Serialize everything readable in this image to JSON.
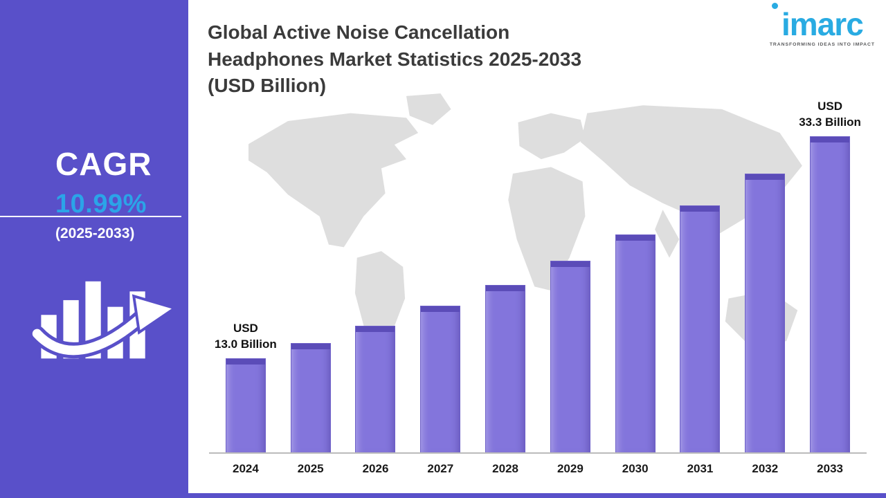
{
  "sidebar": {
    "cagr_label": "CAGR",
    "cagr_value": "10.99%",
    "cagr_period": "(2025-2033)",
    "bg_color": "#5950C9",
    "accent_color": "#2BA4E8",
    "icon": "growth-bars-with-up-arrow-icon"
  },
  "header": {
    "title": "Global Active Noise Cancellation\nHeadphones Market Statistics 2025-2033\n(USD Billion)"
  },
  "logo": {
    "brand": "imarc",
    "tagline": "TRANSFORMING IDEAS INTO IMPACT",
    "color": "#29ABE2"
  },
  "chart_data": {
    "type": "bar",
    "title": "Global Active Noise Cancellation Headphones Market Statistics 2025-2033 (USD Billion)",
    "unit": "USD Billion",
    "categories": [
      "2024",
      "2025",
      "2026",
      "2027",
      "2028",
      "2029",
      "2030",
      "2031",
      "2032",
      "2033"
    ],
    "values": [
      13.0,
      14.4,
      16.0,
      17.8,
      19.7,
      21.9,
      24.3,
      27.0,
      29.9,
      33.3
    ],
    "annotations": [
      {
        "index": 0,
        "text": "USD\n13.0 Billion"
      },
      {
        "index": 9,
        "text": "USD\n33.3 Billion"
      }
    ],
    "cagr": "10.99%",
    "bar_color": "#8375DC",
    "bar_top_color": "#5B4CB8",
    "axis_color": "#BBBBBB",
    "grid": false,
    "legend": "none",
    "ylim": [
      0,
      35
    ]
  }
}
